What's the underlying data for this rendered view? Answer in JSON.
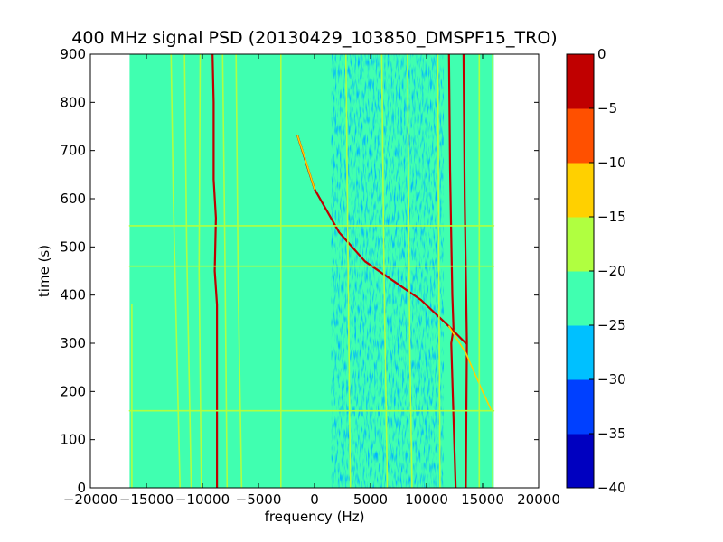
{
  "chart_data": {
    "type": "heatmap",
    "title": "400 MHz signal PSD (20130429_103850_DMSPF15_TRO)",
    "xlabel": "frequency (Hz)",
    "ylabel": "time (s)",
    "xlim": [
      -20000,
      20000
    ],
    "ylim": [
      0,
      900
    ],
    "xticks": [
      -20000,
      -15000,
      -10000,
      -5000,
      0,
      5000,
      10000,
      15000,
      20000
    ],
    "yticks": [
      0,
      100,
      200,
      300,
      400,
      500,
      600,
      700,
      800,
      900
    ],
    "data_extent_x": [
      -16500,
      16000
    ],
    "background_level": -22.5,
    "noise_band_x": [
      1500,
      11500
    ],
    "noise_band_level": -27.5,
    "colorbar": {
      "levels": [
        -40,
        -35,
        -30,
        -25,
        -20,
        -15,
        -10,
        -5,
        0
      ],
      "tick_labels": [
        "0",
        "−5",
        "−10",
        "−15",
        "−20",
        "−25",
        "−30",
        "−35",
        "−40"
      ],
      "colors": [
        "#0000c0",
        "#0040ff",
        "#00c0ff",
        "#40ffb0",
        "#b0ff40",
        "#ffd000",
        "#ff5000",
        "#c00000"
      ]
    },
    "series": [
      {
        "level": -2.5,
        "points": [
          [
            -9100,
            900
          ],
          [
            -9000,
            800
          ],
          [
            -9000,
            640
          ],
          [
            -8800,
            560
          ],
          [
            -8900,
            450
          ],
          [
            -8700,
            380
          ],
          [
            -8700,
            0
          ]
        ]
      },
      {
        "level": -2.5,
        "points": [
          [
            12000,
            900
          ],
          [
            12100,
            660
          ],
          [
            12200,
            520
          ],
          [
            12300,
            400
          ],
          [
            12400,
            330
          ],
          [
            12200,
            300
          ],
          [
            12600,
            0
          ]
        ]
      },
      {
        "level": -2.5,
        "points": [
          [
            13300,
            900
          ],
          [
            13400,
            600
          ],
          [
            13600,
            300
          ],
          [
            13500,
            0
          ]
        ]
      },
      {
        "level": -2.5,
        "points": [
          [
            -1500,
            730
          ],
          [
            0,
            620
          ],
          [
            2200,
            530
          ],
          [
            4500,
            470
          ],
          [
            7000,
            430
          ],
          [
            9500,
            390
          ],
          [
            12000,
            335
          ],
          [
            13500,
            300
          ]
        ]
      },
      {
        "level": -12.5,
        "points": [
          [
            -1500,
            730
          ],
          [
            -800,
            680
          ],
          [
            0,
            620
          ]
        ]
      },
      {
        "level": -12.5,
        "points": [
          [
            12000,
            335
          ],
          [
            13500,
            280
          ],
          [
            15000,
            200
          ],
          [
            15800,
            160
          ]
        ]
      },
      {
        "level": -17.5,
        "points": [
          [
            -16300,
            380
          ],
          [
            -16300,
            0
          ]
        ]
      },
      {
        "level": -17.5,
        "points": [
          [
            -12800,
            900
          ],
          [
            -12600,
            600
          ],
          [
            -12300,
            300
          ],
          [
            -12000,
            0
          ]
        ]
      },
      {
        "level": -17.5,
        "points": [
          [
            -11600,
            900
          ],
          [
            -11400,
            500
          ],
          [
            -11000,
            0
          ]
        ]
      },
      {
        "level": -17.5,
        "points": [
          [
            -10200,
            900
          ],
          [
            -10300,
            450
          ],
          [
            -10100,
            0
          ]
        ]
      },
      {
        "level": -17.5,
        "points": [
          [
            -8200,
            900
          ],
          [
            -8000,
            500
          ],
          [
            -7800,
            0
          ]
        ]
      },
      {
        "level": -17.5,
        "points": [
          [
            -7000,
            900
          ],
          [
            -6800,
            400
          ],
          [
            -6500,
            0
          ]
        ]
      },
      {
        "level": -17.5,
        "points": [
          [
            -3000,
            900
          ],
          [
            -3000,
            0
          ]
        ]
      },
      {
        "level": -17.5,
        "points": [
          [
            2800,
            900
          ],
          [
            3000,
            450
          ],
          [
            3200,
            0
          ]
        ]
      },
      {
        "level": -17.5,
        "points": [
          [
            6000,
            900
          ],
          [
            6200,
            450
          ],
          [
            6500,
            0
          ]
        ]
      },
      {
        "level": -17.5,
        "points": [
          [
            8300,
            900
          ],
          [
            8500,
            300
          ],
          [
            8700,
            0
          ]
        ]
      },
      {
        "level": -17.5,
        "points": [
          [
            11000,
            900
          ],
          [
            11100,
            450
          ],
          [
            11200,
            0
          ]
        ]
      },
      {
        "level": -17.5,
        "points": [
          [
            14700,
            900
          ],
          [
            14700,
            0
          ]
        ]
      },
      {
        "level": -17.5,
        "points": [
          [
            15900,
            900
          ],
          [
            15900,
            0
          ]
        ]
      },
      {
        "level": -17.5,
        "points": [
          [
            -16500,
            544
          ],
          [
            16000,
            544
          ]
        ]
      },
      {
        "level": -17.5,
        "points": [
          [
            -16500,
            460
          ],
          [
            16000,
            460
          ]
        ]
      },
      {
        "level": -17.5,
        "points": [
          [
            -16500,
            160
          ],
          [
            16000,
            160
          ]
        ]
      }
    ],
    "grid": false,
    "legend": "colorbar-right"
  }
}
